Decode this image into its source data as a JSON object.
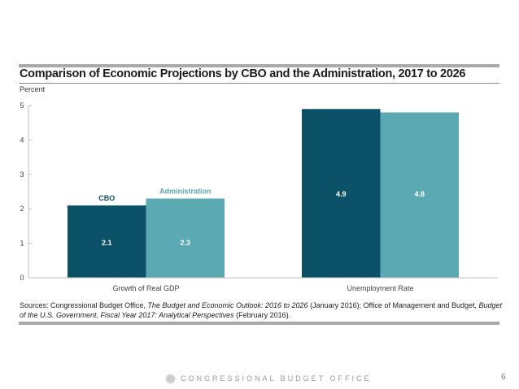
{
  "footer": {
    "organization": "CONGRESSIONAL BUDGET OFFICE",
    "page_number": "6",
    "logo_icon": "cbo-seal-icon"
  },
  "sources": {
    "prefix": "Sources: Congressional Budget Office, ",
    "title1": "The Budget and Economic Outlook: 2016 to 2026",
    "mid": " (January 2016); Office of Management and Budget, ",
    "title2": "Budget of the U.S. Government, Fiscal Year 2017: Analytical Perspectives",
    "suffix": " (February 2016)."
  },
  "colors": {
    "cbo": "#0b5269",
    "administration": "#5ba9b3",
    "axis": "#bdbdbd",
    "rule": "#a9a9a9"
  },
  "chart_data": {
    "type": "bar",
    "title": "Comparison of Economic Projections by CBO and the Administration, 2017 to 2026",
    "xlabel": "",
    "ylabel": "Percent",
    "ylim": [
      0,
      5
    ],
    "yticks": [
      0,
      1,
      2,
      3,
      4,
      5
    ],
    "grid": false,
    "categories": [
      "Growth of Real GDP",
      "Unemployment Rate"
    ],
    "series": [
      {
        "name": "CBO",
        "values": [
          2.1,
          4.9
        ],
        "data_labels": [
          "2.1",
          "4.9"
        ]
      },
      {
        "name": "Administration",
        "values": [
          2.3,
          4.8
        ],
        "data_labels": [
          "2.3",
          "4.8"
        ]
      }
    ],
    "legend": "inline labels above first category bars"
  }
}
